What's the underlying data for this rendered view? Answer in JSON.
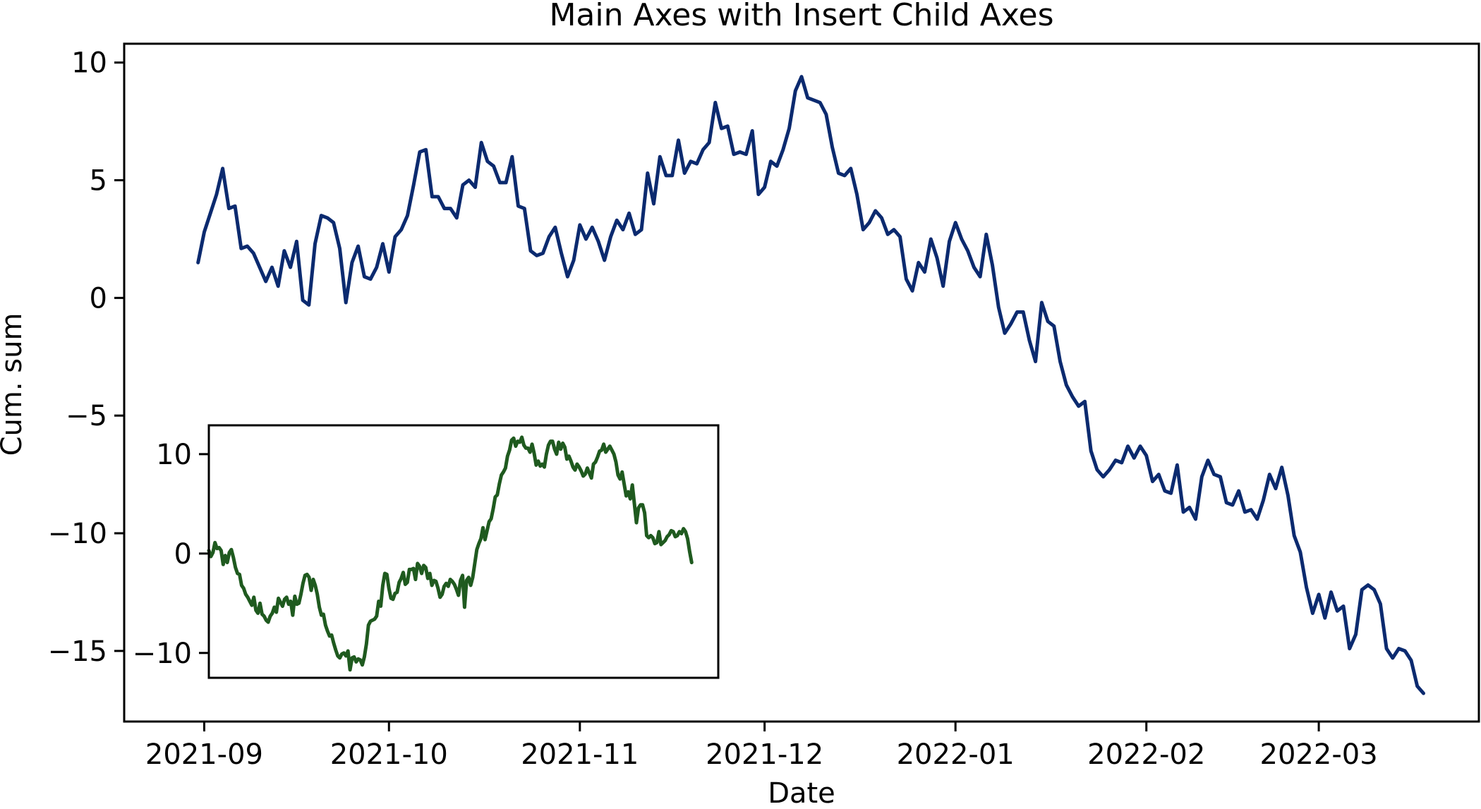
{
  "chart_data": [
    {
      "type": "line",
      "title": "Main Axes with Insert Child Axes",
      "xlabel": "Date",
      "ylabel": "Cum. sum",
      "xlim": [
        "2021-08-19",
        "2022-03-27"
      ],
      "ylim": [
        -18,
        10.8
      ],
      "x_tick_labels": [
        "2021-09",
        "2021-10",
        "2021-11",
        "2021-12",
        "2022-01",
        "2022-02",
        "2022-03"
      ],
      "x_tick_dates": [
        "2021-09-01",
        "2021-10-01",
        "2021-11-01",
        "2021-12-01",
        "2022-01-01",
        "2022-02-01",
        "2022-03-01"
      ],
      "y_ticks": [
        10,
        5,
        0,
        -5,
        -10,
        -15
      ],
      "y_tick_labels": [
        "10",
        "5",
        "0",
        "−5",
        "−10",
        "−15"
      ],
      "color": "#0b2a6f",
      "series": [
        {
          "x_start": "2021-08-31",
          "x_step_days": 1,
          "values": [
            1.5,
            2.8,
            3.6,
            4.4,
            5.5,
            3.8,
            3.9,
            2.1,
            2.2,
            1.9,
            1.3,
            0.7,
            1.3,
            0.5,
            2.0,
            1.3,
            2.4,
            -0.1,
            -0.3,
            2.3,
            3.5,
            3.4,
            3.2,
            2.1,
            -0.2,
            1.5,
            2.2,
            0.9,
            0.8,
            1.3,
            2.3,
            1.1,
            2.6,
            2.9,
            3.5,
            4.8,
            6.2,
            6.3,
            4.3,
            4.3,
            3.8,
            3.8,
            3.4,
            4.8,
            5.0,
            4.7,
            6.6,
            5.8,
            5.6,
            4.9,
            4.9,
            6.0,
            3.9,
            3.8,
            2.0,
            1.8,
            1.9,
            2.6,
            3.0,
            1.9,
            0.9,
            1.6,
            3.1,
            2.5,
            3.0,
            2.4,
            1.6,
            2.6,
            3.3,
            2.9,
            3.6,
            2.7,
            2.9,
            5.3,
            4.0,
            6.0,
            5.2,
            5.2,
            6.7,
            5.3,
            5.8,
            5.7,
            6.3,
            6.6,
            8.3,
            7.2,
            7.3,
            6.1,
            6.2,
            6.1,
            7.1,
            4.4,
            4.7,
            5.8,
            5.6,
            6.3,
            7.2,
            8.8,
            9.4,
            8.5,
            8.4,
            8.3,
            7.8,
            6.4,
            5.3,
            5.2,
            5.5,
            4.4,
            2.9,
            3.2,
            3.7,
            3.4,
            2.7,
            2.9,
            2.6,
            0.8,
            0.3,
            1.5,
            1.1,
            2.5,
            1.7,
            0.5,
            2.4,
            3.2,
            2.5,
            2.0,
            1.3,
            0.9,
            2.7,
            1.4,
            -0.4,
            -1.5,
            -1.1,
            -0.6,
            -0.6,
            -1.8,
            -2.7,
            -0.2,
            -1.0,
            -1.2,
            -2.7,
            -3.7,
            -4.2,
            -4.6,
            -4.4,
            -6.5,
            -7.3,
            -7.6,
            -7.3,
            -6.9,
            -7.0,
            -6.3,
            -6.8,
            -6.3,
            -6.7,
            -7.8,
            -7.5,
            -8.2,
            -8.3,
            -7.1,
            -9.1,
            -8.9,
            -9.4,
            -7.6,
            -6.9,
            -7.5,
            -7.6,
            -8.7,
            -8.8,
            -8.2,
            -9.1,
            -9.0,
            -9.4,
            -8.6,
            -7.5,
            -8.1,
            -7.2,
            -8.4,
            -10.1,
            -10.8,
            -12.3,
            -13.4,
            -12.6,
            -13.6,
            -12.5,
            -13.3,
            -13.1,
            -14.9,
            -14.3,
            -12.4,
            -12.2,
            -12.4,
            -13.0,
            -14.9,
            -15.3,
            -14.9,
            -15.0,
            -15.4,
            -16.5,
            -16.8
          ]
        }
      ]
    },
    {
      "type": "line",
      "title": "",
      "xlabel": "",
      "ylabel": "",
      "xlim": [
        0,
        249
      ],
      "ylim": [
        -12.5,
        12.9
      ],
      "y_ticks": [
        10,
        0,
        -10
      ],
      "y_tick_labels": [
        "10",
        "0",
        "−10"
      ],
      "x_ticks_visible": false,
      "color": "#1f5a1f",
      "series": [
        {
          "values": [
            0.3,
            -0.3,
            0.1,
            1.1,
            0.5,
            0.6,
            0.3,
            -1.1,
            -0.2,
            -0.9,
            0.1,
            0.4,
            -0.4,
            -1.4,
            -2.0,
            -2.1,
            -3.2,
            -3.5,
            -4.1,
            -4.4,
            -4.8,
            -5.2,
            -4.4,
            -5.7,
            -6.0,
            -5.0,
            -6.1,
            -6.3,
            -6.7,
            -6.9,
            -6.3,
            -6.0,
            -5.4,
            -5.9,
            -4.5,
            -4.9,
            -5.3,
            -4.6,
            -4.4,
            -5.1,
            -4.8,
            -6.2,
            -4.3,
            -5.1,
            -5.0,
            -4.1,
            -3.0,
            -2.2,
            -2.1,
            -2.4,
            -3.7,
            -2.6,
            -3.2,
            -4.1,
            -5.4,
            -6.2,
            -6.1,
            -7.2,
            -7.8,
            -8.3,
            -8.2,
            -9.0,
            -9.7,
            -10.3,
            -10.5,
            -10.1,
            -10.0,
            -10.3,
            -9.8,
            -11.7,
            -10.5,
            -10.4,
            -10.9,
            -10.6,
            -10.7,
            -11.2,
            -10.4,
            -9.1,
            -7.2,
            -6.8,
            -6.7,
            -6.6,
            -6.3,
            -4.8,
            -5.3,
            -3.2,
            -2.0,
            -2.1,
            -3.5,
            -4.5,
            -4.6,
            -4.0,
            -3.9,
            -2.9,
            -2.5,
            -1.9,
            -3.1,
            -2.9,
            -1.6,
            -1.6,
            -1.5,
            -2.6,
            -1.0,
            -1.3,
            -2.0,
            -1.2,
            -1.4,
            -2.5,
            -2.0,
            -3.2,
            -2.7,
            -2.8,
            -3.5,
            -4.4,
            -4.1,
            -3.3,
            -3.0,
            -3.3,
            -2.6,
            -2.8,
            -3.1,
            -3.6,
            -4.2,
            -2.7,
            -2.2,
            -5.4,
            -2.7,
            -2.4,
            -3.2,
            -2.4,
            -1.0,
            0.4,
            1.0,
            1.5,
            2.6,
            1.4,
            2.3,
            3.2,
            3.5,
            4.5,
            5.7,
            5.9,
            7.0,
            7.9,
            8.2,
            8.6,
            9.8,
            10.4,
            11.4,
            11.6,
            10.8,
            11.3,
            11.2,
            11.7,
            10.9,
            10.6,
            10.6,
            10.2,
            11.0,
            10.1,
            8.9,
            9.3,
            8.8,
            9.0,
            8.7,
            10.0,
            10.9,
            11.3,
            11.3,
            10.5,
            10.0,
            11.2,
            10.5,
            11.1,
            10.7,
            9.5,
            9.8,
            9.3,
            8.7,
            8.4,
            9.0,
            8.7,
            8.3,
            7.8,
            8.0,
            8.6,
            8.1,
            7.6,
            9.0,
            9.2,
            9.7,
            10.3,
            10.4,
            11.0,
            10.2,
            10.5,
            10.8,
            10.4,
            10.0,
            9.2,
            7.9,
            7.5,
            8.2,
            7.0,
            5.8,
            6.2,
            5.5,
            6.9,
            5.0,
            3.1,
            4.6,
            4.9,
            4.9,
            4.1,
            1.8,
            1.6,
            1.8,
            1.6,
            1.0,
            1.1,
            2.2,
            0.9,
            1.1,
            1.3,
            1.7,
            1.9,
            2.3,
            2.2,
            1.7,
            1.8,
            2.2,
            2.0,
            2.5,
            2.2,
            1.5,
            0.2,
            -0.9
          ]
        }
      ]
    }
  ]
}
